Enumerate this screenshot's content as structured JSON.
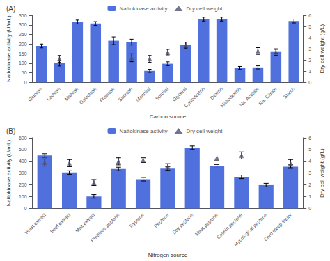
{
  "chart_data": [
    {
      "type": "bar",
      "title": "(A)",
      "xlabel": "Carbon source",
      "ylabel": "Nattokinase activity (U/mL)",
      "y2label": "Dry cell weight (g/L)",
      "categories": [
        "Glucose",
        "Lactose",
        "Maltose",
        "Galactose",
        "Fructose",
        "Sucrose",
        "Mannitol",
        "Sorbitol",
        "Glycerol",
        "Cyclodextrin",
        "Dextrin",
        "Maltodextrin",
        "Na. Acetate",
        "Na. Citrate",
        "Starch"
      ],
      "series": [
        {
          "name": "Nattokinase activity",
          "type": "bar",
          "values": [
            190,
            100,
            315,
            307,
            217,
            210,
            60,
            97,
            195,
            330,
            330,
            75,
            78,
            162,
            320
          ],
          "errors": [
            10,
            15,
            10,
            10,
            20,
            15,
            8,
            10,
            15,
            10,
            10,
            8,
            8,
            10,
            10
          ]
        },
        {
          "name": "Dry cell weight",
          "type": "scatter",
          "marker": "triangle",
          "axis": "y2",
          "values": [
            null,
            2.1,
            null,
            null,
            null,
            2.2,
            2.1,
            2.7,
            3.3,
            null,
            null,
            null,
            2.8,
            2.7,
            null
          ],
          "errors": [
            null,
            0.3,
            null,
            null,
            null,
            0.35,
            0.3,
            0.25,
            0.3,
            null,
            null,
            null,
            0.3,
            0.3,
            null
          ]
        }
      ],
      "ylim": [
        0,
        350
      ],
      "yticks": [
        0,
        50,
        100,
        150,
        200,
        250,
        300,
        350
      ],
      "y2lim": [
        0,
        6
      ],
      "y2ticks": [
        0,
        1,
        2,
        3,
        4,
        5,
        6
      ],
      "grid": false,
      "legend": "top"
    },
    {
      "type": "bar",
      "title": "(B)",
      "xlabel": "Nitrogen source",
      "ylabel": "Nattokinase activity (U/mL)",
      "y2label": "Dry cell weight (g/L)",
      "categories": [
        "Yeast extract",
        "Beef extract",
        "Malt extract",
        "Proteose peptone",
        "Tryptone",
        "Peptone",
        "Soy peptone",
        "Meat peptone",
        "Casein peptone",
        "Mycological peptone",
        "Corn steep liquor"
      ],
      "series": [
        {
          "name": "Nattokinase activity",
          "type": "bar",
          "values": [
            450,
            305,
            102,
            335,
            248,
            338,
            515,
            358,
            268,
            198,
            355
          ],
          "errors": [
            15,
            15,
            15,
            15,
            15,
            15,
            15,
            15,
            15,
            15,
            15
          ]
        },
        {
          "name": "Dry cell weight",
          "type": "scatter",
          "marker": "triangle",
          "axis": "y2",
          "values": [
            3.9,
            3.85,
            2.2,
            4.0,
            4.1,
            3.5,
            null,
            4.3,
            4.5,
            null,
            3.8
          ],
          "errors": [
            0.3,
            0.3,
            0.25,
            0.3,
            0.2,
            0.3,
            null,
            0.25,
            0.3,
            null,
            0.35
          ]
        }
      ],
      "ylim": [
        0,
        600
      ],
      "yticks": [
        0,
        100,
        200,
        300,
        400,
        500,
        600
      ],
      "y2lim": [
        0,
        6
      ],
      "y2ticks": [
        0,
        1,
        2,
        3,
        4,
        5,
        6
      ],
      "grid": false,
      "legend": "top"
    }
  ]
}
